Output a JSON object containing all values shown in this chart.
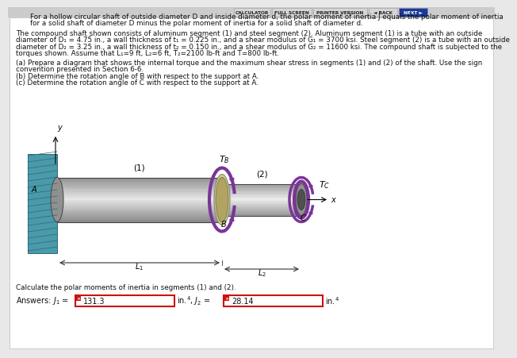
{
  "bg_color": "#e8e8e8",
  "white_bg": "#ffffff",
  "nav_bg": "#cccccc",
  "nav_buttons": [
    "CALCULATOR",
    "FULL SCREEN",
    "PRINTER VERSION",
    "◄ BACK",
    "NEXT ►"
  ],
  "nav_btn_colors": [
    "#d8d8d8",
    "#d8d8d8",
    "#d8d8d8",
    "#d8d8d8",
    "#1a3a99"
  ],
  "nav_btn_tcolors": [
    "#222222",
    "#222222",
    "#222222",
    "#222222",
    "#ffffff"
  ],
  "title_line1": "For a hollow circular shaft of outside diameter D and inside diameter d, the polar moment of inertia J equals the polar moment of inertia",
  "title_line2": "for a solid shaft of diameter D minus the polar moment of inertia for a solid shaft of diameter d.",
  "body_line1": "The compound shaft shown consists of aluminum segment (1) and steel segment (2). Aluminum segment (1) is a tube with an outside",
  "body_line2": "diameter of D₁ = 4.75 in., a wall thickness of t₁ = 0.225 in., and a shear modulus of G₁ = 3700 ksi. Steel segment (2) is a tube with an outside",
  "body_line3": "diameter of D₂ = 3.25 in., a wall thickness of t₂ = 0.150 in., and a shear modulus of G₂ = 11600 ksi. The compound shaft is subjected to the",
  "body_line4": "torques shown. Assume that L₁=9 ft, L₂=6 ft, T₂=2100 lb-ft and T⁣=800 lb-ft.",
  "parta_line1": "(a) Prepare a diagram that shows the internal torque and the maximum shear stress in segments (1) and (2) of the shaft. Use the sign",
  "parta_line2": "convention presented in Section 6-6.",
  "partb": "(b) Determine the rotation angle of B with respect to the support at A.",
  "partc": "(c) Determine the rotation angle of C with respect to the support at A.",
  "question": "Calculate the polar moments of inertia in segments (1) and (2).",
  "answer1": "131.3",
  "answer2": "28.14",
  "text_color": "#111111",
  "red_color": "#cc1111",
  "wall_color": "#4a9aaa",
  "shaft_color": "#b8b8b8",
  "shaft_dark": "#888888",
  "shaft_highlight": "#e8e8e8",
  "torque_color": "#7a3598",
  "dim_color": "#333333",
  "fs": 6.3,
  "fs_ans": 7.0
}
